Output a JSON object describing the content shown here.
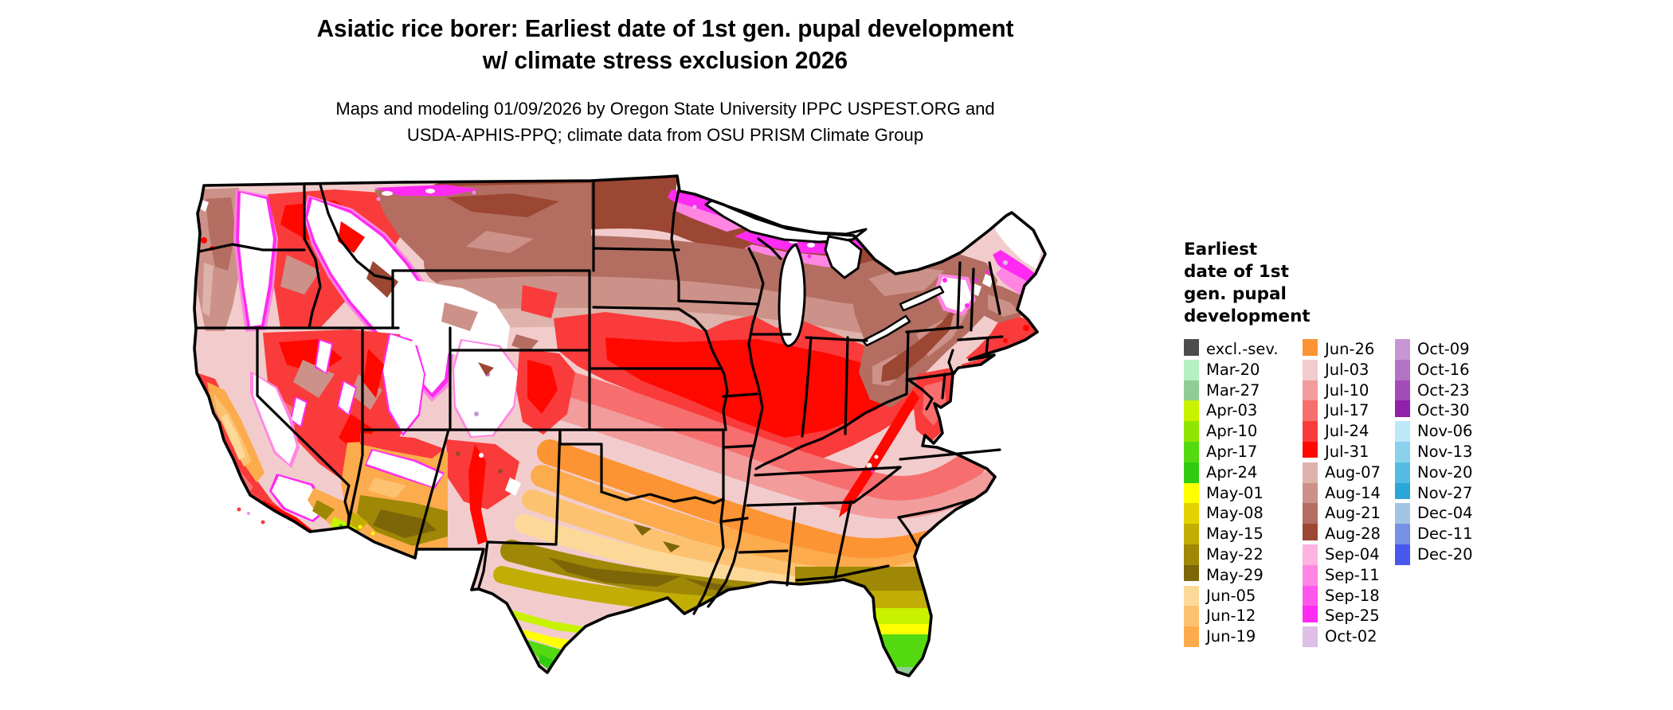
{
  "title": {
    "line1": "Asiatic rice borer: Earliest date of 1st gen. pupal development",
    "line2": "w/ climate stress exclusion 2026"
  },
  "subtitle": {
    "line1": "Maps and modeling 01/09/2026 by Oregon State University IPPC USPEST.ORG and",
    "line2": "USDA-APHIS-PPQ; climate data from OSU PRISM Climate Group"
  },
  "legend": {
    "title_lines": [
      "Earliest",
      "date of 1st",
      "gen. pupal",
      "development"
    ],
    "columns": [
      [
        {
          "id": "excl-sev",
          "label": "excl.-sev.",
          "color": "#4d4d4d",
          "gap_after": true
        },
        {
          "id": "mar-20",
          "label": "Mar-20",
          "color": "#b4f0c2",
          "gap_after": false
        },
        {
          "id": "mar-27",
          "label": "Mar-27",
          "color": "#8fcc96",
          "gap_after": false
        },
        {
          "id": "apr-03",
          "label": "Apr-03",
          "color": "#c8f200",
          "gap_after": false
        },
        {
          "id": "apr-10",
          "label": "Apr-10",
          "color": "#8fe600",
          "gap_after": false
        },
        {
          "id": "apr-17",
          "label": "Apr-17",
          "color": "#55d911",
          "gap_after": false
        },
        {
          "id": "apr-24",
          "label": "Apr-24",
          "color": "#30cc11",
          "gap_after": false
        },
        {
          "id": "may-01",
          "label": "May-01",
          "color": "#ffff00",
          "gap_after": false
        },
        {
          "id": "may-08",
          "label": "May-08",
          "color": "#e3d200",
          "gap_after": false
        },
        {
          "id": "may-15",
          "label": "May-15",
          "color": "#c2ad05",
          "gap_after": false
        },
        {
          "id": "may-22",
          "label": "May-22",
          "color": "#9e8805",
          "gap_after": false
        },
        {
          "id": "may-29",
          "label": "May-29",
          "color": "#7d6608",
          "gap_after": true
        },
        {
          "id": "jun-05",
          "label": "Jun-05",
          "color": "#fcd999",
          "gap_after": false
        },
        {
          "id": "jun-12",
          "label": "Jun-12",
          "color": "#fcc270",
          "gap_after": false
        },
        {
          "id": "jun-19",
          "label": "Jun-19",
          "color": "#fcab4d",
          "gap_after": false
        }
      ],
      [
        {
          "id": "jun-26",
          "label": "Jun-26",
          "color": "#fc9433",
          "gap_after": true
        },
        {
          "id": "jul-03",
          "label": "Jul-03",
          "color": "#f2cccc",
          "gap_after": false
        },
        {
          "id": "jul-10",
          "label": "Jul-10",
          "color": "#f29c9c",
          "gap_after": false
        },
        {
          "id": "jul-17",
          "label": "Jul-17",
          "color": "#f76e6e",
          "gap_after": false
        },
        {
          "id": "jul-24",
          "label": "Jul-24",
          "color": "#fa3b3b",
          "gap_after": false
        },
        {
          "id": "jul-31",
          "label": "Jul-31",
          "color": "#ff0800",
          "gap_after": true
        },
        {
          "id": "aug-07",
          "label": "Aug-07",
          "color": "#ddb3ab",
          "gap_after": false
        },
        {
          "id": "aug-14",
          "label": "Aug-14",
          "color": "#cc9188",
          "gap_after": false
        },
        {
          "id": "aug-21",
          "label": "Aug-21",
          "color": "#b36e61",
          "gap_after": false
        },
        {
          "id": "aug-28",
          "label": "Aug-28",
          "color": "#9c4733",
          "gap_after": true
        },
        {
          "id": "sep-04",
          "label": "Sep-04",
          "color": "#ffb3e0",
          "gap_after": false
        },
        {
          "id": "sep-11",
          "label": "Sep-11",
          "color": "#ff85e3",
          "gap_after": false
        },
        {
          "id": "sep-18",
          "label": "Sep-18",
          "color": "#ff57ed",
          "gap_after": false
        },
        {
          "id": "sep-25",
          "label": "Sep-25",
          "color": "#ff2bf2",
          "gap_after": true
        },
        {
          "id": "oct-02",
          "label": "Oct-02",
          "color": "#ddbfe8",
          "gap_after": false
        }
      ],
      [
        {
          "id": "oct-09",
          "label": "Oct-09",
          "color": "#c796d4",
          "gap_after": false
        },
        {
          "id": "oct-16",
          "label": "Oct-16",
          "color": "#b372c4",
          "gap_after": false
        },
        {
          "id": "oct-23",
          "label": "Oct-23",
          "color": "#a44bba",
          "gap_after": false
        },
        {
          "id": "oct-30",
          "label": "Oct-30",
          "color": "#8f22a8",
          "gap_after": true
        },
        {
          "id": "nov-06",
          "label": "Nov-06",
          "color": "#bce8fa",
          "gap_after": false
        },
        {
          "id": "nov-13",
          "label": "Nov-13",
          "color": "#8ad1ed",
          "gap_after": false
        },
        {
          "id": "nov-20",
          "label": "Nov-20",
          "color": "#57bce3",
          "gap_after": false
        },
        {
          "id": "nov-27",
          "label": "Nov-27",
          "color": "#2ba6d9",
          "gap_after": true
        },
        {
          "id": "dec-04",
          "label": "Dec-04",
          "color": "#a3c4e5",
          "gap_after": false
        },
        {
          "id": "dec-11",
          "label": "Dec-11",
          "color": "#7591e8",
          "gap_after": false
        },
        {
          "id": "dec-20",
          "label": "Dec-20",
          "color": "#4759ed",
          "gap_after": false
        }
      ]
    ]
  },
  "map": {
    "kind": "conus-choropleth-raster",
    "outline_color": "#000000",
    "water_color": "#ffffff",
    "background": "#ffffff"
  }
}
